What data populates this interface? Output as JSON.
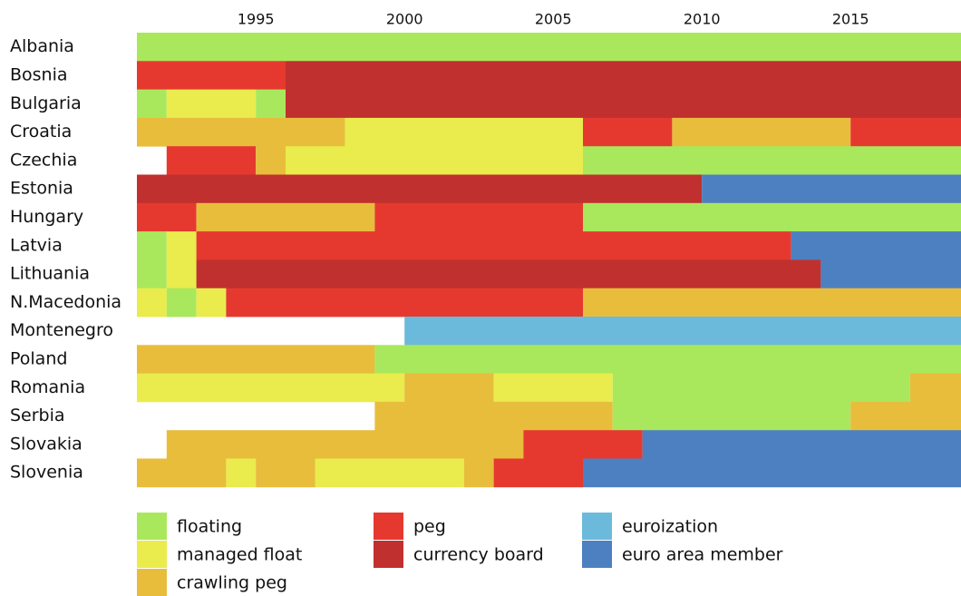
{
  "chart_data": {
    "type": "timeline",
    "xlim": [
      1991,
      2019
    ],
    "xticks": [
      1995,
      2000,
      2005,
      2010,
      2015
    ],
    "regimes": [
      {
        "name": "floating",
        "color": "#a9e85c"
      },
      {
        "name": "managed float",
        "color": "#e9ec4c"
      },
      {
        "name": "crawling peg",
        "color": "#e8bd3c"
      },
      {
        "name": "peg",
        "color": "#e5392f"
      },
      {
        "name": "currency board",
        "color": "#c0302f"
      },
      {
        "name": "euroization",
        "color": "#6cbadb"
      },
      {
        "name": "euro area member",
        "color": "#4d80c0"
      }
    ],
    "rows": [
      {
        "label": "Albania",
        "segments": [
          {
            "regime": "floating",
            "start": 1991,
            "end": 2019
          }
        ]
      },
      {
        "label": "Bosnia",
        "segments": [
          {
            "regime": "peg",
            "start": 1991,
            "end": 1996
          },
          {
            "regime": "currency board",
            "start": 1996,
            "end": 2019
          }
        ]
      },
      {
        "label": "Bulgaria",
        "segments": [
          {
            "regime": "floating",
            "start": 1991,
            "end": 1992
          },
          {
            "regime": "managed float",
            "start": 1992,
            "end": 1995
          },
          {
            "regime": "floating",
            "start": 1995,
            "end": 1996
          },
          {
            "regime": "currency board",
            "start": 1996,
            "end": 2019
          }
        ]
      },
      {
        "label": "Croatia",
        "segments": [
          {
            "regime": "crawling peg",
            "start": 1991,
            "end": 1998
          },
          {
            "regime": "managed float",
            "start": 1998,
            "end": 2006
          },
          {
            "regime": "peg",
            "start": 2006,
            "end": 2009
          },
          {
            "regime": "crawling peg",
            "start": 2009,
            "end": 2015
          },
          {
            "regime": "peg",
            "start": 2015,
            "end": 2019
          }
        ]
      },
      {
        "label": "Czechia",
        "segments": [
          {
            "regime": "peg",
            "start": 1992,
            "end": 1995
          },
          {
            "regime": "crawling peg",
            "start": 1995,
            "end": 1996
          },
          {
            "regime": "managed float",
            "start": 1996,
            "end": 2006
          },
          {
            "regime": "floating",
            "start": 2006,
            "end": 2019
          }
        ]
      },
      {
        "label": "Estonia",
        "segments": [
          {
            "regime": "currency board",
            "start": 1991,
            "end": 2010
          },
          {
            "regime": "euro area member",
            "start": 2010,
            "end": 2019
          }
        ]
      },
      {
        "label": "Hungary",
        "segments": [
          {
            "regime": "peg",
            "start": 1991,
            "end": 1993
          },
          {
            "regime": "crawling peg",
            "start": 1993,
            "end": 1999
          },
          {
            "regime": "peg",
            "start": 1999,
            "end": 2006
          },
          {
            "regime": "floating",
            "start": 2006,
            "end": 2019
          }
        ]
      },
      {
        "label": "Latvia",
        "segments": [
          {
            "regime": "floating",
            "start": 1991,
            "end": 1992
          },
          {
            "regime": "managed float",
            "start": 1992,
            "end": 1993
          },
          {
            "regime": "peg",
            "start": 1993,
            "end": 2013
          },
          {
            "regime": "euro area member",
            "start": 2013,
            "end": 2019
          }
        ]
      },
      {
        "label": "Lithuania",
        "segments": [
          {
            "regime": "floating",
            "start": 1991,
            "end": 1992
          },
          {
            "regime": "managed float",
            "start": 1992,
            "end": 1993
          },
          {
            "regime": "currency board",
            "start": 1993,
            "end": 2014
          },
          {
            "regime": "euro area member",
            "start": 2014,
            "end": 2019
          }
        ]
      },
      {
        "label": "N.Macedonia",
        "segments": [
          {
            "regime": "managed float",
            "start": 1991,
            "end": 1992
          },
          {
            "regime": "floating",
            "start": 1992,
            "end": 1993
          },
          {
            "regime": "managed float",
            "start": 1993,
            "end": 1994
          },
          {
            "regime": "peg",
            "start": 1994,
            "end": 2006
          },
          {
            "regime": "crawling peg",
            "start": 2006,
            "end": 2019
          }
        ]
      },
      {
        "label": "Montenegro",
        "segments": [
          {
            "regime": "euroization",
            "start": 2000,
            "end": 2019
          }
        ]
      },
      {
        "label": "Poland",
        "segments": [
          {
            "regime": "crawling peg",
            "start": 1991,
            "end": 1999
          },
          {
            "regime": "floating",
            "start": 1999,
            "end": 2019
          }
        ]
      },
      {
        "label": "Romania",
        "segments": [
          {
            "regime": "managed float",
            "start": 1991,
            "end": 2000
          },
          {
            "regime": "crawling peg",
            "start": 2000,
            "end": 2003
          },
          {
            "regime": "managed float",
            "start": 2003,
            "end": 2007
          },
          {
            "regime": "floating",
            "start": 2007,
            "end": 2017
          },
          {
            "regime": "crawling peg",
            "start": 2017,
            "end": 2019
          }
        ]
      },
      {
        "label": "Serbia",
        "segments": [
          {
            "regime": "crawling peg",
            "start": 1999,
            "end": 2007
          },
          {
            "regime": "floating",
            "start": 2007,
            "end": 2015
          },
          {
            "regime": "crawling peg",
            "start": 2015,
            "end": 2019
          }
        ]
      },
      {
        "label": "Slovakia",
        "segments": [
          {
            "regime": "crawling peg",
            "start": 1992,
            "end": 2004
          },
          {
            "regime": "peg",
            "start": 2004,
            "end": 2008
          },
          {
            "regime": "euro area member",
            "start": 2008,
            "end": 2019
          }
        ]
      },
      {
        "label": "Slovenia",
        "segments": [
          {
            "regime": "crawling peg",
            "start": 1991,
            "end": 1994
          },
          {
            "regime": "managed float",
            "start": 1994,
            "end": 1995
          },
          {
            "regime": "crawling peg",
            "start": 1995,
            "end": 1997
          },
          {
            "regime": "managed float",
            "start": 1997,
            "end": 2002
          },
          {
            "regime": "crawling peg",
            "start": 2002,
            "end": 2003
          },
          {
            "regime": "peg",
            "start": 2003,
            "end": 2006
          },
          {
            "regime": "euro area member",
            "start": 2006,
            "end": 2019
          }
        ]
      }
    ]
  }
}
